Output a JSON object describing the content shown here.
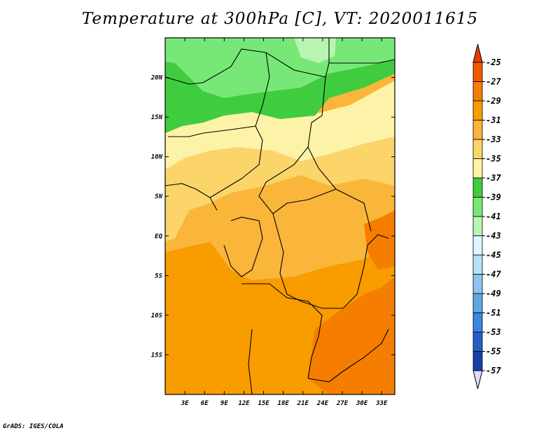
{
  "title": "Temperature at 300hPa [C], VT: 2020011615",
  "credit": "GrADS: IGES/COLA",
  "map": {
    "lon_range": [
      0,
      35
    ],
    "lat_range": [
      -20,
      25
    ],
    "lon_ticks": [
      "3E",
      "6E",
      "9E",
      "12E",
      "15E",
      "18E",
      "21E",
      "24E",
      "27E",
      "30E",
      "33E"
    ],
    "lat_ticks": [
      "20N",
      "15N",
      "10N",
      "5N",
      "EQ",
      "5S",
      "10S",
      "15S"
    ]
  },
  "colorbar": {
    "labels": [
      "-25",
      "-27",
      "-29",
      "-31",
      "-33",
      "-35",
      "-37",
      "-39",
      "-41",
      "-43",
      "-45",
      "-47",
      "-49",
      "-51",
      "-53",
      "-55",
      "-57"
    ],
    "colors": [
      "#f05a00",
      "#f57d00",
      "#f89c00",
      "#f9b63a",
      "#fbd56a",
      "#fdf3a8",
      "#3fcc3f",
      "#77e877",
      "#b8f5b3",
      "#e0f5ff",
      "#b7e1fa",
      "#8ec5f0",
      "#5ea7e6",
      "#3a87e0",
      "#2361c9",
      "#1440a8",
      "#0b0e73"
    ]
  }
}
